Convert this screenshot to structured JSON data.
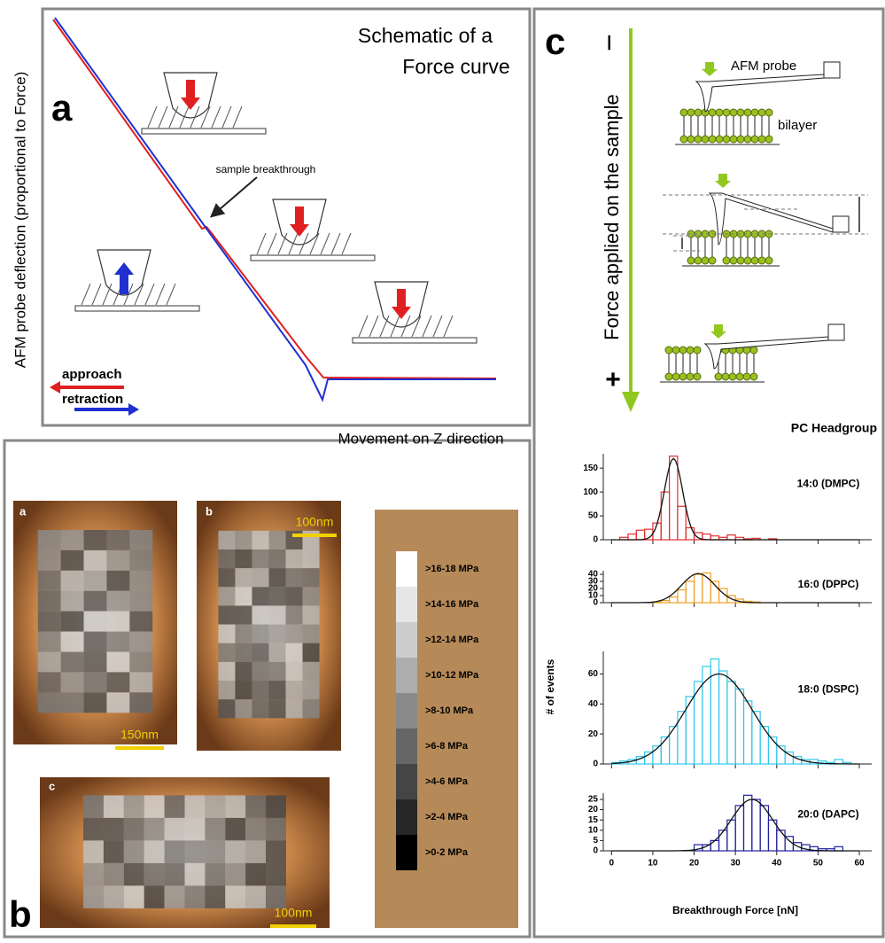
{
  "panel_a": {
    "letter": "a",
    "title": [
      "Schematic of a",
      "Force curve"
    ],
    "y_label": "AFM probe deflection (proportional to Force)",
    "x_label": "Movement on Z direction",
    "annotation": "sample breakthrough",
    "legend": [
      "approach",
      "retraction"
    ]
  },
  "panel_b": {
    "letter": "b",
    "images": [
      {
        "letter": "a",
        "scale_bar": "150nm"
      },
      {
        "letter": "b",
        "scale_bar": "100nm"
      },
      {
        "letter": "c",
        "scale_bar": "100nm"
      }
    ],
    "legend": [
      {
        "label": ">16-18 MPa",
        "color": "#ffffff"
      },
      {
        "label": ">14-16 MPa",
        "color": "#e6e6e6"
      },
      {
        "label": ">12-14 MPa",
        "color": "#cccccc"
      },
      {
        "label": ">10-12 MPa",
        "color": "#adadad"
      },
      {
        "label": ">8-10 MPa",
        "color": "#8a8a8a"
      },
      {
        "label": ">6-8 MPa",
        "color": "#666666"
      },
      {
        "label": ">4-6 MPa",
        "color": "#454545"
      },
      {
        "label": ">2-4 MPa",
        "color": "#262626"
      },
      {
        "label": ">0-2 MPa",
        "color": "#000000"
      }
    ]
  },
  "panel_c": {
    "letter": "c",
    "minus": "−",
    "plus": "+",
    "force_label": "Force applied on the sample",
    "probe_label": "AFM probe",
    "bilayer_label": "bilayer",
    "group_title": "PC Headgroup",
    "y_label": "# of events",
    "x_label": "Breakthrough Force [nN]"
  },
  "chart_data": [
    {
      "type": "histogram",
      "title": "14:0 (DMPC)",
      "color": "#e03030",
      "bins": [
        0,
        2,
        4,
        6,
        8,
        10,
        12,
        14,
        16,
        18,
        20,
        22,
        24,
        26,
        28,
        30,
        32,
        34,
        36,
        38,
        40,
        42,
        44,
        46,
        48,
        50,
        52,
        54,
        56,
        58,
        60
      ],
      "values": [
        0,
        5,
        12,
        20,
        22,
        35,
        100,
        175,
        70,
        25,
        15,
        12,
        8,
        5,
        10,
        5,
        2,
        3,
        0,
        2,
        0,
        0,
        0,
        0,
        0,
        0,
        0,
        0,
        0,
        0
      ],
      "fit": {
        "center": 15,
        "width": 2.2,
        "height": 170
      },
      "xlim": [
        -2,
        63
      ],
      "ylim": [
        0,
        180
      ],
      "yticks": [
        0,
        50,
        100,
        150
      ]
    },
    {
      "type": "histogram",
      "title": "16:0 (DPPC)",
      "color": "#f0a020",
      "bins": [
        0,
        2,
        4,
        6,
        8,
        10,
        12,
        14,
        16,
        18,
        20,
        22,
        24,
        26,
        28,
        30,
        32,
        34,
        36,
        38,
        40,
        42,
        44,
        46,
        48,
        50,
        52,
        54,
        56,
        58,
        60
      ],
      "values": [
        0,
        0,
        0,
        0,
        0,
        1,
        3,
        8,
        18,
        30,
        40,
        42,
        30,
        20,
        10,
        5,
        2,
        1,
        0,
        0,
        0,
        0,
        0,
        0,
        0,
        0,
        0,
        0,
        0,
        0
      ],
      "fit": {
        "center": 21,
        "width": 4,
        "height": 41
      },
      "xlim": [
        -2,
        63
      ],
      "ylim": [
        0,
        45
      ],
      "yticks": [
        0,
        10,
        20,
        30,
        40
      ]
    },
    {
      "type": "histogram",
      "title": "18:0 (DSPC)",
      "color": "#30c8e8",
      "bins": [
        0,
        2,
        4,
        6,
        8,
        10,
        12,
        14,
        16,
        18,
        20,
        22,
        24,
        26,
        28,
        30,
        32,
        34,
        36,
        38,
        40,
        42,
        44,
        46,
        48,
        50,
        52,
        54,
        56,
        58,
        60
      ],
      "values": [
        1,
        2,
        3,
        5,
        8,
        12,
        18,
        25,
        35,
        45,
        55,
        65,
        70,
        62,
        55,
        50,
        42,
        35,
        25,
        18,
        12,
        8,
        5,
        3,
        3,
        2,
        1,
        3,
        1,
        0
      ],
      "fit": {
        "center": 26,
        "width": 8,
        "height": 60
      },
      "xlim": [
        -2,
        63
      ],
      "ylim": [
        0,
        75
      ],
      "yticks": [
        0,
        20,
        40,
        60
      ]
    },
    {
      "type": "histogram",
      "title": "20:0 (DAPC)",
      "color": "#2020a0",
      "bins": [
        0,
        2,
        4,
        6,
        8,
        10,
        12,
        14,
        16,
        18,
        20,
        22,
        24,
        26,
        28,
        30,
        32,
        34,
        36,
        38,
        40,
        42,
        44,
        46,
        48,
        50,
        52,
        54,
        56,
        58,
        60
      ],
      "values": [
        0,
        0,
        0,
        0,
        0,
        0,
        0,
        0,
        0,
        0,
        3,
        3,
        5,
        10,
        15,
        22,
        27,
        25,
        22,
        15,
        10,
        7,
        4,
        3,
        2,
        1,
        1,
        2,
        0,
        0
      ],
      "fit": {
        "center": 34,
        "width": 5,
        "height": 25
      },
      "xlim": [
        -2,
        63
      ],
      "ylim": [
        0,
        28
      ],
      "yticks": [
        0,
        5,
        10,
        15,
        20,
        25
      ],
      "xticks": [
        0,
        10,
        20,
        30,
        40,
        50,
        60
      ]
    }
  ]
}
